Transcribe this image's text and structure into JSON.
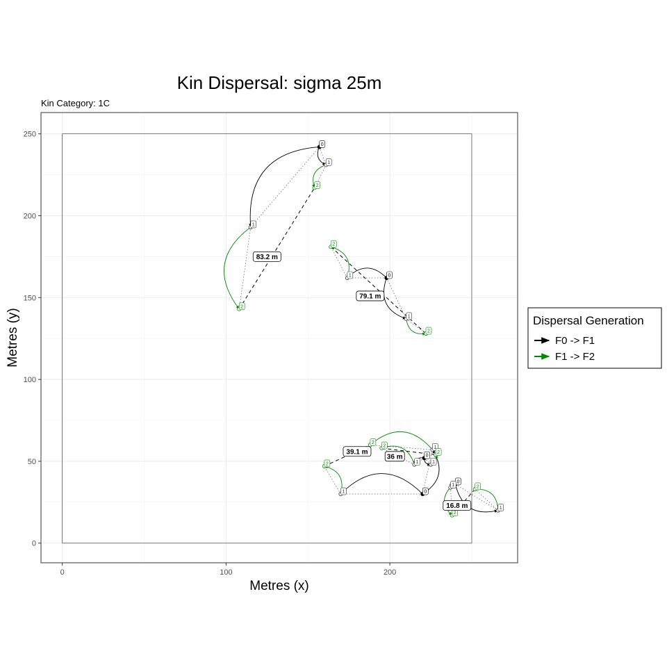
{
  "chart_data": {
    "type": "scatter",
    "title": "Kin Dispersal: sigma 25m",
    "subtitle": "Kin Category: 1C",
    "xlabel": "Metres (x)",
    "ylabel": "Metres (y)",
    "xlim": [
      -13,
      278
    ],
    "ylim": [
      -12,
      263
    ],
    "x_ticks": [
      0,
      100,
      200
    ],
    "y_ticks": [
      0,
      50,
      100,
      150,
      200,
      250
    ],
    "grid": true,
    "study_area": [
      [
        0,
        0
      ],
      [
        250,
        0
      ],
      [
        250,
        250
      ],
      [
        0,
        250
      ]
    ],
    "legend": {
      "title": "Dispersal Generation",
      "position": "right",
      "entries": [
        {
          "label": "F0 -> F1",
          "color": "#000000"
        },
        {
          "label": "F1 -> F2",
          "color": "#008B00"
        }
      ]
    },
    "colors": {
      "F0 -> F1": "#000000",
      "F1 -> F2": "#008B00"
    },
    "families": [
      {
        "f0": {
          "x": 157,
          "y": 242,
          "label": "0"
        },
        "f1": [
          {
            "x": 115,
            "y": 193,
            "label": "1"
          },
          {
            "x": 161,
            "y": 231,
            "label": "1"
          }
        ],
        "f2": [
          {
            "x": 108,
            "y": 143,
            "label": "2"
          },
          {
            "x": 154,
            "y": 217,
            "label": "2"
          }
        ],
        "distance": {
          "value": 83.2,
          "label": "83.2 m",
          "at": [
            125,
            175
          ]
        }
      },
      {
        "f0": {
          "x": 198,
          "y": 162,
          "label": "0"
        },
        "f1": [
          {
            "x": 174,
            "y": 162,
            "label": "1"
          },
          {
            "x": 210,
            "y": 137,
            "label": "1"
          }
        ],
        "f2": [
          {
            "x": 164,
            "y": 181,
            "label": "2"
          },
          {
            "x": 222,
            "y": 128,
            "label": "2"
          }
        ],
        "distance": {
          "value": 79.1,
          "label": "79.1 m",
          "at": [
            188,
            151
          ]
        }
      },
      {
        "f0": {
          "x": 220,
          "y": 30,
          "label": "0"
        },
        "f1": [
          {
            "x": 170,
            "y": 30,
            "label": "1"
          },
          {
            "x": 226,
            "y": 57,
            "label": "1"
          }
        ],
        "f2": [
          {
            "x": 160,
            "y": 47,
            "label": "2"
          },
          {
            "x": 188,
            "y": 60,
            "label": "2"
          }
        ],
        "distance": {
          "value": 39.1,
          "label": "39.1 m",
          "at": [
            180,
            56
          ]
        }
      },
      {
        "f0": {
          "x": 221,
          "y": 52,
          "label": "0"
        },
        "f1": [
          {
            "x": 215,
            "y": 48,
            "label": "1"
          },
          {
            "x": 225,
            "y": 48,
            "label": "1"
          }
        ],
        "f2": [
          {
            "x": 195,
            "y": 58,
            "label": "2"
          },
          {
            "x": 228,
            "y": 54,
            "label": "2"
          }
        ],
        "distance": {
          "value": 36,
          "label": "36 m",
          "at": [
            203,
            53
          ]
        }
      },
      {
        "f0": {
          "x": 240,
          "y": 36,
          "label": "0"
        },
        "f1": [
          {
            "x": 237,
            "y": 34,
            "label": "1"
          },
          {
            "x": 266,
            "y": 20,
            "label": "1"
          }
        ],
        "f2": [
          {
            "x": 238,
            "y": 17,
            "label": "2"
          },
          {
            "x": 252,
            "y": 33,
            "label": "2"
          }
        ],
        "distance": {
          "value": 16.8,
          "label": "16.8 m",
          "at": [
            241,
            23
          ]
        }
      }
    ]
  }
}
